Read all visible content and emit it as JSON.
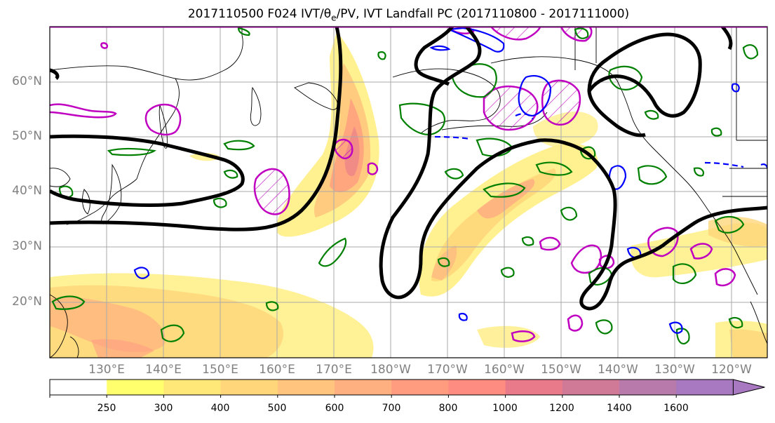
{
  "title": {
    "prefix": "2017110500 F024 IVT/θ",
    "sub": "e",
    "suffix": "/PV, IVT Landfall PC (2017110800 - 2017111000)"
  },
  "lat_labels": [
    "60°N",
    "50°N",
    "40°N",
    "30°N",
    "20°N"
  ],
  "lon_labels": [
    "130°E",
    "140°E",
    "150°E",
    "160°E",
    "170°E",
    "180°W",
    "170°W",
    "160°W",
    "150°W",
    "140°W",
    "130°W",
    "120°W"
  ],
  "colorbar": {
    "ticks": [
      "250",
      "300",
      "400",
      "500",
      "600",
      "700",
      "800",
      "1000",
      "1200",
      "1400",
      "1600"
    ],
    "colors": [
      "#ffff6e",
      "#ffe778",
      "#ffd67a",
      "#ffc47d",
      "#ffb080",
      "#ff9c80",
      "#ff8c80",
      "#e87a8a",
      "#d07a98",
      "#b87aab",
      "#a878c0"
    ],
    "unit": ""
  },
  "legend_contours": {
    "theta_e": "#000000",
    "pv_positive": "#008000",
    "pv_negative": "#0000ff",
    "pc_landfall": "#c000c0"
  }
}
